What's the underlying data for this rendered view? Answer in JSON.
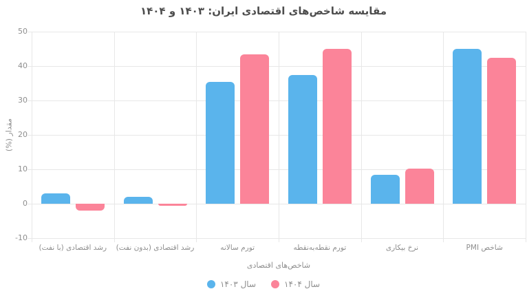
{
  "chart_data": {
    "type": "bar",
    "title": "مقایسه شاخص‌های اقتصادی ایران: ۱۴۰۳ و ۱۴۰۴",
    "xlabel": "شاخص‌های اقتصادی",
    "ylabel": "مقدار (%)",
    "categories": [
      "رشد اقتصادی (با نفت)",
      "رشد اقتصادی (بدون نفت)",
      "تورم سالانه",
      "تورم نقطه‌به‌نقطه",
      "نرخ بیکاری",
      "شاخص PMI"
    ],
    "series": [
      {
        "name": "سال ۱۴۰۳",
        "color": "#5ab4ec",
        "values": [
          3,
          2,
          35.5,
          37.5,
          8.5,
          45
        ]
      },
      {
        "name": "سال ۱۴۰۴",
        "color": "#fb8499",
        "values": [
          -2,
          -0.5,
          43.5,
          45,
          10.3,
          42.5
        ]
      }
    ],
    "ylim": [
      -10,
      50
    ],
    "ytick_step": 10,
    "yticks": [
      -10,
      0,
      10,
      20,
      30,
      40,
      50
    ],
    "grid": true,
    "legend_position": "bottom"
  }
}
